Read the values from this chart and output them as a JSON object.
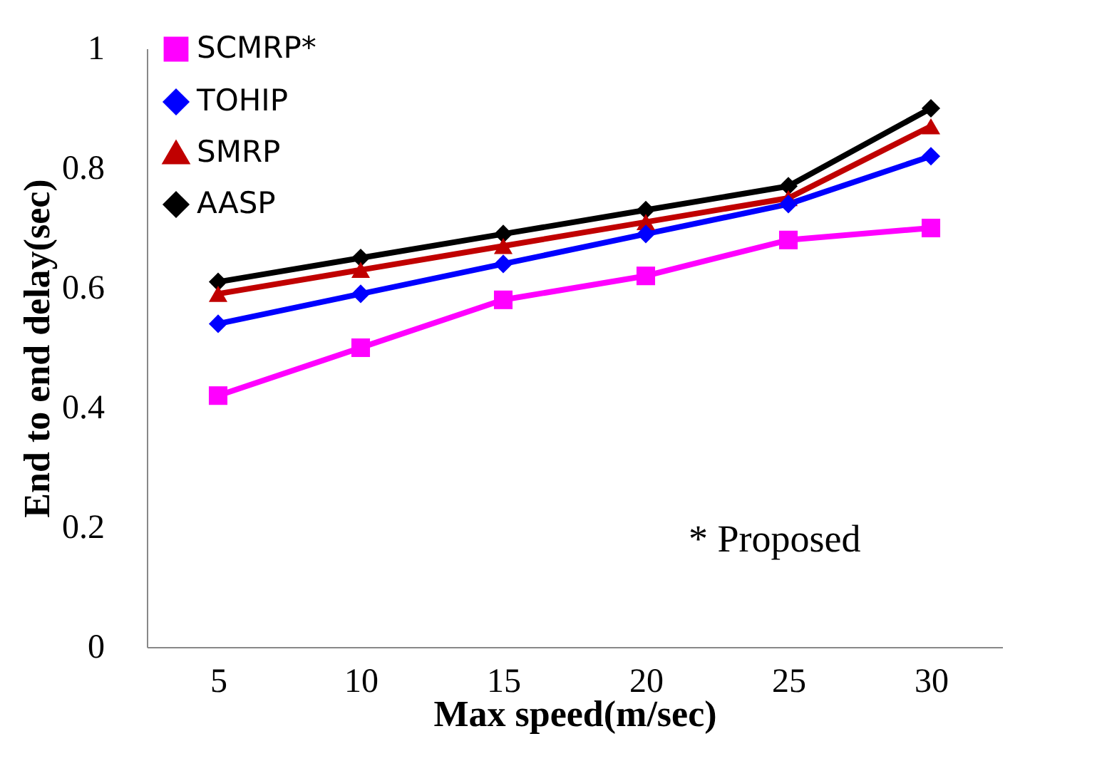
{
  "chart_data": {
    "type": "line",
    "xlabel": "Max speed(m/sec)",
    "ylabel": "End to end delay(sec)",
    "categories": [
      "5",
      "10",
      "15",
      "20",
      "25",
      "30"
    ],
    "ylim": [
      0,
      1
    ],
    "yticks": [
      0,
      0.2,
      0.4,
      0.6,
      0.8,
      1
    ],
    "series": [
      {
        "name": "SCMRP*",
        "color": "#ff00ff",
        "marker": "square",
        "values": [
          0.42,
          0.5,
          0.58,
          0.62,
          0.68,
          0.7
        ]
      },
      {
        "name": "TOHIP",
        "color": "#0000ff",
        "marker": "diamond",
        "values": [
          0.54,
          0.59,
          0.64,
          0.69,
          0.74,
          0.82
        ]
      },
      {
        "name": "SMRP",
        "color": "#c00000",
        "marker": "triangle",
        "values": [
          0.59,
          0.63,
          0.67,
          0.71,
          0.75,
          0.87
        ]
      },
      {
        "name": "AASP",
        "color": "#000000",
        "marker": "diamond",
        "values": [
          0.61,
          0.65,
          0.69,
          0.73,
          0.77,
          0.9
        ]
      }
    ],
    "annotations": [
      "* Proposed"
    ],
    "legend": "top left",
    "grid": false
  }
}
